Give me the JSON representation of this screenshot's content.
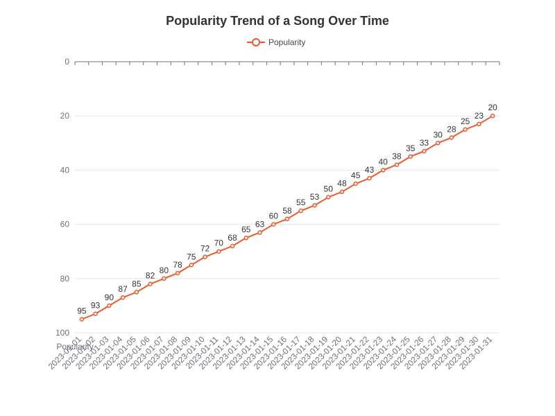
{
  "chart_data": {
    "type": "line",
    "title": "Popularity Trend of a Song Over Time",
    "ylabel": "Popularity",
    "xlabel": "",
    "y_inverted": true,
    "ylim": [
      0,
      100
    ],
    "yticks": [
      0,
      20,
      40,
      60,
      80,
      100
    ],
    "grid": true,
    "legend_position": "top-center",
    "categories": [
      "2023-01-01",
      "2023-01-02",
      "2023-01-03",
      "2023-01-04",
      "2023-01-05",
      "2023-01-06",
      "2023-01-07",
      "2023-01-08",
      "2023-01-09",
      "2023-01-10",
      "2023-01-11",
      "2023-01-12",
      "2023-01-13",
      "2023-01-14",
      "2023-01-15",
      "2023-01-16",
      "2023-01-17",
      "2023-01-18",
      "2023-01-19",
      "2023-01-20",
      "2023-01-21",
      "2023-01-22",
      "2023-01-23",
      "2023-01-24",
      "2023-01-25",
      "2023-01-26",
      "2023-01-27",
      "2023-01-28",
      "2023-01-29",
      "2023-01-30",
      "2023-01-31"
    ],
    "series": [
      {
        "name": "Popularity",
        "color": "#f0582a",
        "values": [
          95,
          93,
          90,
          87,
          85,
          82,
          80,
          78,
          75,
          72,
          70,
          68,
          65,
          63,
          60,
          58,
          55,
          53,
          50,
          48,
          45,
          43,
          40,
          38,
          35,
          33,
          30,
          28,
          25,
          23,
          20
        ]
      }
    ]
  }
}
